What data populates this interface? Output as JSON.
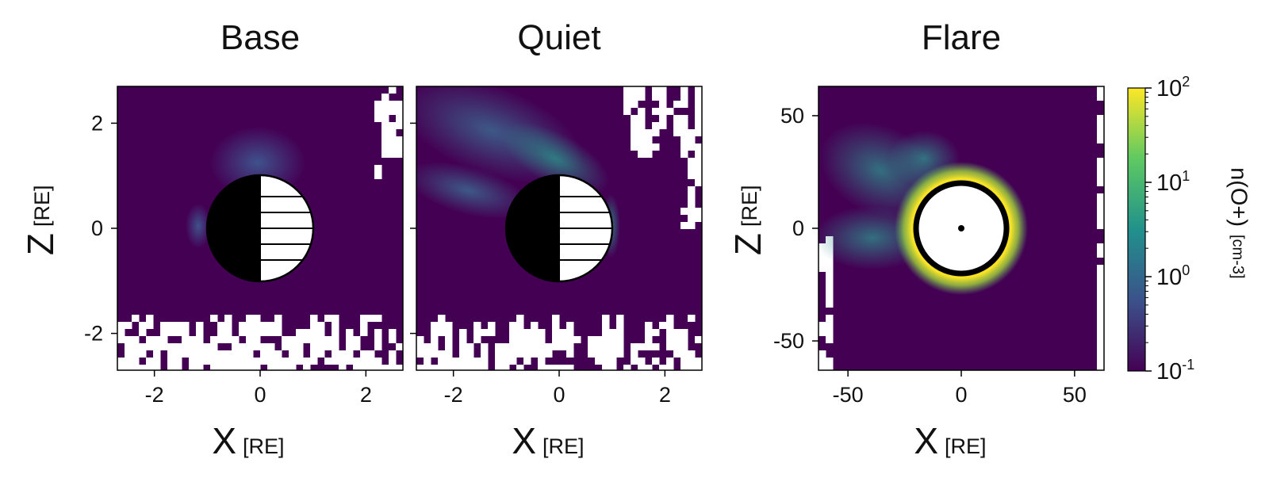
{
  "chart_data": [
    {
      "type": "heatmap",
      "title": "Base",
      "xlabel": "X",
      "xlabel_unit": "[RE]",
      "ylabel": "Z",
      "ylabel_unit": "[RE]",
      "xlim": [
        -2.7,
        2.7
      ],
      "ylim": [
        -2.7,
        2.7
      ],
      "xticks": [
        "-2",
        "0",
        "2"
      ],
      "yticks": [
        "2",
        "0",
        "-2"
      ],
      "inner_boundary_radius": 1.0,
      "inner_boundary_style": "half-black day/night sphere with horizontal lines"
    },
    {
      "type": "heatmap",
      "title": "Quiet",
      "xlabel": "X",
      "xlabel_unit": "[RE]",
      "xlim": [
        -2.7,
        2.7
      ],
      "ylim": [
        -2.7,
        2.7
      ],
      "xticks": [
        "-2",
        "0",
        "2"
      ],
      "inner_boundary_radius": 1.0,
      "inner_boundary_style": "half-black day/night sphere with horizontal lines"
    },
    {
      "type": "heatmap",
      "title": "Flare",
      "xlabel": "X",
      "xlabel_unit": "[RE]",
      "ylabel": "Z",
      "ylabel_unit": "[RE]",
      "xlim": [
        -63,
        63
      ],
      "ylim": [
        -63,
        63
      ],
      "xticks": [
        "-50",
        "0",
        "50"
      ],
      "yticks": [
        "50",
        "0",
        "-50"
      ],
      "inner_boundary_radius": 20,
      "inner_boundary_style": "white disk with black ring and central dot"
    }
  ],
  "colorbar": {
    "label": "n(O+)",
    "unit": "[cm-3]",
    "scale": "log",
    "range": [
      0.1,
      100
    ],
    "ticks": [
      {
        "base": "10",
        "exp": "2"
      },
      {
        "base": "10",
        "exp": "1"
      },
      {
        "base": "10",
        "exp": "0"
      },
      {
        "base": "10",
        "exp": "-1"
      }
    ],
    "colormap": [
      "#440154",
      "#3b528b",
      "#21918c",
      "#5ec962",
      "#fde725"
    ]
  }
}
